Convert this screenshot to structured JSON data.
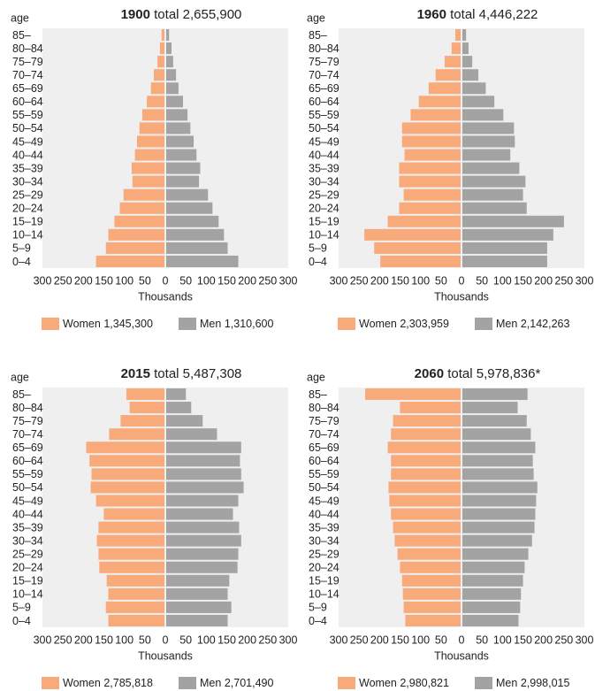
{
  "chart_data": [
    {
      "type": "pyramid",
      "title": "1900",
      "subtitle": "total 2,655,900",
      "y_label": "age",
      "x_label": "Thousands",
      "categories": [
        "85–",
        "80–84",
        "75–79",
        "70–74",
        "65–69",
        "60–64",
        "55–59",
        "50–54",
        "45–49",
        "40–44",
        "35–39",
        "30–34",
        "25–29",
        "20–24",
        "15–19",
        "10–14",
        "5–9",
        "0–4"
      ],
      "xlim": [
        -300,
        300
      ],
      "xticks": [
        {
          "value": -300,
          "label": "300"
        },
        {
          "value": -250,
          "label": "250"
        },
        {
          "value": -200,
          "label": "200"
        },
        {
          "value": -150,
          "label": "150"
        },
        {
          "value": -100,
          "label": "100"
        },
        {
          "value": -50,
          "label": "50"
        },
        0,
        50,
        100,
        150,
        200,
        250,
        300
      ],
      "series": [
        {
          "name": "Women",
          "color": "#f9aa7b",
          "side": "left",
          "total": {
            "value": 1345300,
            "label": "1,345,300"
          },
          "values": [
            7,
            11,
            17,
            26,
            33,
            43,
            54,
            61,
            67,
            72,
            80,
            78,
            100,
            109,
            122,
            137,
            143,
            167
          ]
        },
        {
          "name": "Men",
          "color": "#a3a3a3",
          "side": "right",
          "total": {
            "value": 1310600,
            "label": "1,310,600"
          },
          "values": [
            7,
            13,
            17,
            24,
            30,
            41,
            52,
            59,
            67,
            74,
            83,
            80,
            102,
            113,
            128,
            141,
            150,
            176
          ]
        }
      ]
    },
    {
      "type": "pyramid",
      "title": "1960",
      "subtitle": "total 4,446,222",
      "y_label": "age",
      "x_label": "Thousands",
      "categories": [
        "85–",
        "80–84",
        "75–79",
        "70–74",
        "65–69",
        "60–64",
        "55–59",
        "50–54",
        "45–49",
        "40–44",
        "35–39",
        "30–34",
        "25–29",
        "20–24",
        "15–19",
        "10–14",
        "5–9",
        "0–4"
      ],
      "xlim": [
        -300,
        300
      ],
      "xticks": [
        {
          "value": -300,
          "label": "300"
        },
        {
          "value": -250,
          "label": "250"
        },
        {
          "value": -200,
          "label": "200"
        },
        {
          "value": -150,
          "label": "150"
        },
        {
          "value": -100,
          "label": "100"
        },
        {
          "value": -50,
          "label": "50"
        },
        0,
        50,
        100,
        150,
        200,
        250,
        300
      ],
      "series": [
        {
          "name": "Women",
          "color": "#f9aa7b",
          "side": "left",
          "total": {
            "value": 2303959,
            "label": "2,303,959"
          },
          "values": [
            13,
            22,
            39,
            61,
            78,
            102,
            122,
            143,
            143,
            137,
            150,
            150,
            139,
            150,
            178,
            235,
            211,
            196
          ]
        },
        {
          "name": "Men",
          "color": "#a3a3a3",
          "side": "right",
          "total": {
            "value": 2142263,
            "label": "2,142,263"
          },
          "values": [
            9,
            15,
            24,
            39,
            57,
            78,
            100,
            126,
            128,
            117,
            139,
            154,
            148,
            157,
            248,
            222,
            207,
            207
          ]
        }
      ]
    },
    {
      "type": "pyramid",
      "title": "2015",
      "subtitle": "total 5,487,308",
      "y_label": "age",
      "x_label": "Thousands",
      "categories": [
        "85–",
        "80–84",
        "75–79",
        "70–74",
        "65–69",
        "60–64",
        "55–59",
        "50–54",
        "45–49",
        "40–44",
        "35–39",
        "30–34",
        "25–29",
        "20–24",
        "15–19",
        "10–14",
        "5–9",
        "0–4"
      ],
      "xlim": [
        -300,
        300
      ],
      "xticks": [
        {
          "value": -300,
          "label": "300"
        },
        {
          "value": -250,
          "label": "250"
        },
        {
          "value": -200,
          "label": "200"
        },
        {
          "value": -150,
          "label": "150"
        },
        {
          "value": -100,
          "label": "100"
        },
        {
          "value": -50,
          "label": "50"
        },
        0,
        50,
        100,
        150,
        200,
        250,
        300
      ],
      "series": [
        {
          "name": "Women",
          "color": "#f9aa7b",
          "side": "left",
          "total": {
            "value": 2785818,
            "label": "2,785,818"
          },
          "values": [
            93,
            85,
            107,
            135,
            191,
            183,
            178,
            180,
            167,
            148,
            161,
            165,
            161,
            159,
            141,
            137,
            143,
            137
          ]
        },
        {
          "name": "Men",
          "color": "#a3a3a3",
          "side": "right",
          "total": {
            "value": 2701490,
            "label": "2,701,490"
          },
          "values": [
            48,
            61,
            89,
            124,
            183,
            180,
            183,
            189,
            176,
            163,
            178,
            183,
            176,
            174,
            154,
            150,
            159,
            150
          ]
        }
      ]
    },
    {
      "type": "pyramid",
      "title": "2060",
      "subtitle": "total 5,978,836*",
      "y_label": "age",
      "x_label": "Thousands",
      "categories": [
        "85–",
        "80–84",
        "75–79",
        "70–74",
        "65–69",
        "60–64",
        "55–59",
        "50–54",
        "45–49",
        "40–44",
        "35–39",
        "30–34",
        "25–29",
        "20–24",
        "15–19",
        "10–14",
        "5–9",
        "0–4"
      ],
      "xlim": [
        -300,
        300
      ],
      "xticks": [
        {
          "value": -300,
          "label": "300"
        },
        {
          "value": -250,
          "label": "250"
        },
        {
          "value": -200,
          "label": "200"
        },
        {
          "value": -150,
          "label": "150"
        },
        {
          "value": -100,
          "label": "100"
        },
        {
          "value": -50,
          "label": "50"
        },
        0,
        50,
        100,
        150,
        200,
        250,
        300
      ],
      "series": [
        {
          "name": "Women",
          "color": "#f9aa7b",
          "side": "left",
          "total": {
            "value": 2980821,
            "label": "2,980,821"
          },
          "values": [
            233,
            148,
            165,
            170,
            178,
            170,
            170,
            176,
            174,
            170,
            165,
            161,
            154,
            148,
            143,
            141,
            139,
            135
          ]
        },
        {
          "name": "Men",
          "color": "#a3a3a3",
          "side": "right",
          "total": {
            "value": 2998015,
            "label": "2,998,015"
          },
          "values": [
            159,
            135,
            157,
            167,
            178,
            172,
            174,
            183,
            180,
            178,
            176,
            170,
            161,
            152,
            148,
            143,
            141,
            137
          ]
        }
      ]
    }
  ]
}
